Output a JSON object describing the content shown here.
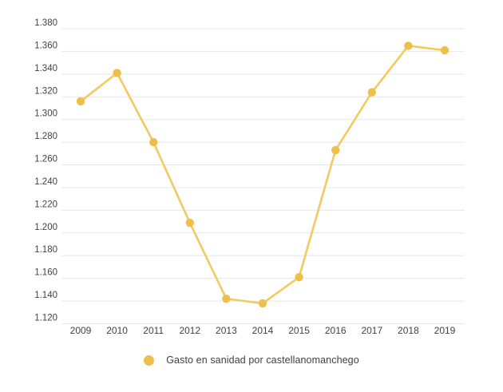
{
  "chart_data": {
    "type": "line",
    "title": "",
    "xlabel": "",
    "ylabel": "",
    "x": [
      "2009",
      "2010",
      "2011",
      "2012",
      "2013",
      "2014",
      "2015",
      "2016",
      "2017",
      "2018",
      "2019"
    ],
    "series": [
      {
        "name": "Gasto en sanidad por castellanomanchego",
        "values": [
          1316,
          1341,
          1280,
          1209,
          1142,
          1138,
          1161,
          1273,
          1324,
          1365,
          1361
        ]
      }
    ],
    "ylim": [
      1120,
      1380
    ],
    "ytick_step": 20,
    "yticks": [
      "1.380",
      "1.360",
      "1.340",
      "1.320",
      "1.300",
      "1.280",
      "1.260",
      "1.240",
      "1.220",
      "1.200",
      "1.180",
      "1.160",
      "1.140",
      "1.120"
    ],
    "grid": "horizontal-only",
    "legend_position": "bottom-center",
    "colors": {
      "point": "#EEC04A",
      "line": "#F2CA61",
      "gridline": "#E7E7E7",
      "axis_text": "#424242",
      "legend_text": "#3F3F3F",
      "background": "#FFFFFF"
    }
  }
}
